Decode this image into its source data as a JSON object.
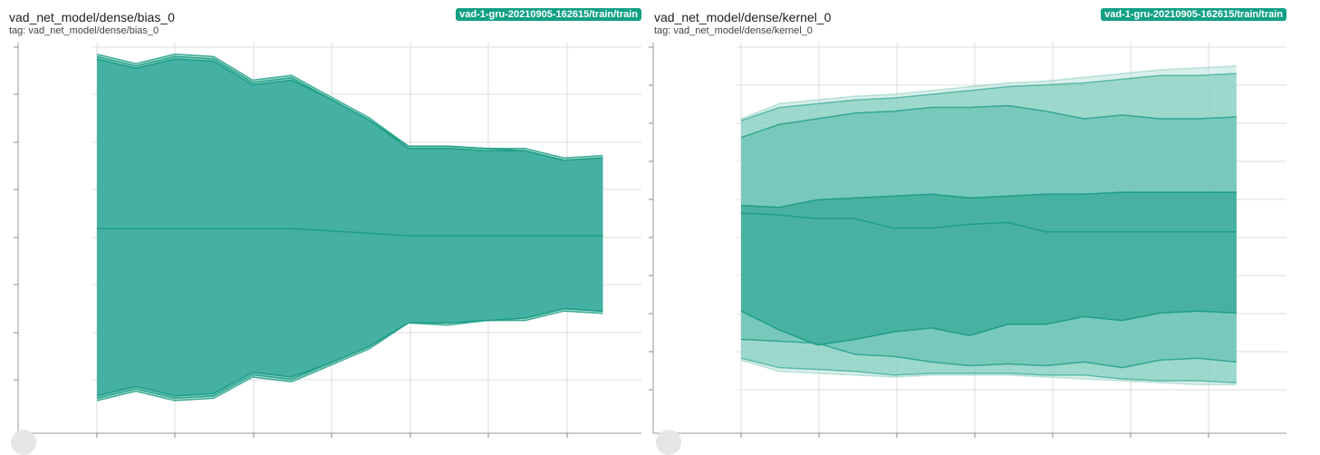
{
  "colors": {
    "band_outer": "#bfe5dd",
    "band_mid": "#6cc4b5",
    "band_inner": "#3fae9e",
    "line": "#1e9e86",
    "chip_bg": "#12a085",
    "grid": "#dcdcdc"
  },
  "cards": [
    {
      "title": "vad_net_model/dense/bias_0",
      "tag": "tag: vad_net_model/dense/bias_0",
      "run": "vad-1-gru-20210905-162615/train/train"
    },
    {
      "title": "vad_net_model/dense/kernel_0",
      "tag": "tag: vad_net_model/dense/kernel_0",
      "run": "vad-1-gru-20210905-162615/train/train"
    }
  ],
  "chart_data": [
    {
      "type": "area",
      "chart_subtype": "histogram-distribution",
      "grid": true,
      "xlim": [
        0,
        7.6
      ],
      "ylim": [
        -0.8,
        0.8
      ],
      "x": [
        0,
        0.5,
        1,
        1.5,
        2,
        2.5,
        3,
        3.5,
        4,
        4.5,
        5,
        5.5,
        6,
        6.5
      ],
      "bands": [
        {
          "level": "max_min",
          "upper": [
            0.77,
            0.73,
            0.77,
            0.76,
            0.66,
            0.68,
            0.59,
            0.5,
            0.38,
            0.38,
            0.37,
            0.37,
            0.33,
            0.34
          ],
          "lower": [
            -0.7,
            -0.66,
            -0.7,
            -0.69,
            -0.6,
            -0.62,
            -0.55,
            -0.48,
            -0.37,
            -0.38,
            -0.36,
            -0.36,
            -0.32,
            -0.33
          ]
        },
        {
          "level": "p93_p7",
          "upper": [
            0.76,
            0.72,
            0.76,
            0.75,
            0.65,
            0.67,
            0.58,
            0.49,
            0.38,
            0.38,
            0.37,
            0.36,
            0.32,
            0.33
          ],
          "lower": [
            -0.69,
            -0.65,
            -0.69,
            -0.68,
            -0.59,
            -0.61,
            -0.54,
            -0.47,
            -0.37,
            -0.37,
            -0.36,
            -0.35,
            -0.31,
            -0.32
          ]
        },
        {
          "level": "p84_p16",
          "upper": [
            0.75,
            0.71,
            0.75,
            0.74,
            0.64,
            0.66,
            0.58,
            0.49,
            0.37,
            0.37,
            0.36,
            0.36,
            0.32,
            0.33
          ],
          "lower": [
            -0.68,
            -0.64,
            -0.68,
            -0.67,
            -0.58,
            -0.6,
            -0.54,
            -0.47,
            -0.37,
            -0.37,
            -0.36,
            -0.35,
            -0.31,
            -0.32
          ]
        }
      ],
      "median": [
        0.03,
        0.03,
        0.03,
        0.03,
        0.03,
        0.03,
        0.02,
        0.01,
        0.0,
        0.0,
        0.0,
        0.0,
        0.0,
        0.0
      ]
    },
    {
      "type": "area",
      "chart_subtype": "histogram-distribution",
      "grid": true,
      "xlim": [
        0,
        8.0
      ],
      "ylim": [
        -1.0,
        1.0
      ],
      "x": [
        0,
        0.25,
        0.5,
        0.75,
        1.0,
        1.25,
        1.5,
        1.75,
        2.0,
        2.25,
        2.5,
        2.75,
        3.0,
        3.25
      ],
      "bands": [
        {
          "level": "max_min",
          "upper": [
            0.62,
            0.7,
            0.72,
            0.74,
            0.75,
            0.77,
            0.79,
            0.81,
            0.82,
            0.84,
            0.86,
            0.88,
            0.89,
            0.9
          ],
          "lower": [
            -0.66,
            -0.72,
            -0.73,
            -0.74,
            -0.75,
            -0.74,
            -0.74,
            -0.74,
            -0.75,
            -0.76,
            -0.77,
            -0.78,
            -0.79,
            -0.79
          ]
        },
        {
          "level": "p93_p7",
          "upper": [
            0.61,
            0.68,
            0.7,
            0.72,
            0.73,
            0.75,
            0.77,
            0.79,
            0.8,
            0.81,
            0.83,
            0.85,
            0.85,
            0.86
          ],
          "lower": [
            -0.65,
            -0.7,
            -0.71,
            -0.72,
            -0.74,
            -0.73,
            -0.73,
            -0.73,
            -0.74,
            -0.74,
            -0.76,
            -0.77,
            -0.77,
            -0.78
          ]
        },
        {
          "level": "p84_p16",
          "upper": [
            0.52,
            0.59,
            0.62,
            0.65,
            0.66,
            0.68,
            0.68,
            0.69,
            0.66,
            0.62,
            0.64,
            0.62,
            0.62,
            0.63
          ],
          "lower": [
            -0.55,
            -0.56,
            -0.57,
            -0.63,
            -0.64,
            -0.67,
            -0.69,
            -0.68,
            -0.69,
            -0.67,
            -0.7,
            -0.66,
            -0.65,
            -0.67
          ]
        },
        {
          "level": "p69_p31",
          "upper": [
            0.16,
            0.15,
            0.19,
            0.2,
            0.21,
            0.22,
            0.2,
            0.21,
            0.22,
            0.22,
            0.23,
            0.23,
            0.23,
            0.23
          ],
          "lower": [
            -0.4,
            -0.5,
            -0.58,
            -0.55,
            -0.51,
            -0.49,
            -0.53,
            -0.47,
            -0.47,
            -0.43,
            -0.45,
            -0.41,
            -0.4,
            -0.41
          ]
        }
      ],
      "median": [
        0.12,
        0.11,
        0.09,
        0.09,
        0.04,
        0.04,
        0.06,
        0.07,
        0.02,
        0.02,
        0.02,
        0.02,
        0.02,
        0.02
      ]
    }
  ]
}
